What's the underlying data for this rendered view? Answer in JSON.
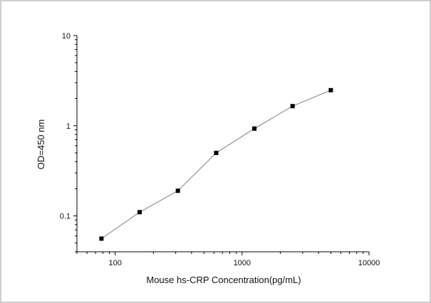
{
  "chart_data": {
    "type": "line",
    "xlabel": "Mouse hs-CRP  Concentration(pg/mL)",
    "ylabel": "OD=450 nm",
    "xscale": "log",
    "yscale": "log",
    "xlim": [
      50,
      10000
    ],
    "ylim": [
      0.04,
      10
    ],
    "x_ticks": [
      100,
      1000,
      10000
    ],
    "x_tick_labels": [
      "100",
      "1000",
      "10000"
    ],
    "y_ticks": [
      0.1,
      1,
      10
    ],
    "y_tick_labels": [
      "0.1",
      "1",
      "10"
    ],
    "grid": false,
    "series": [
      {
        "x": [
          78,
          156,
          312,
          625,
          1250,
          2500,
          5000
        ],
        "values": [
          0.056,
          0.11,
          0.19,
          0.5,
          0.93,
          1.65,
          2.48
        ]
      }
    ],
    "colors": {
      "line": "#808080",
      "marker": "#000000",
      "axis": "#000000"
    }
  }
}
